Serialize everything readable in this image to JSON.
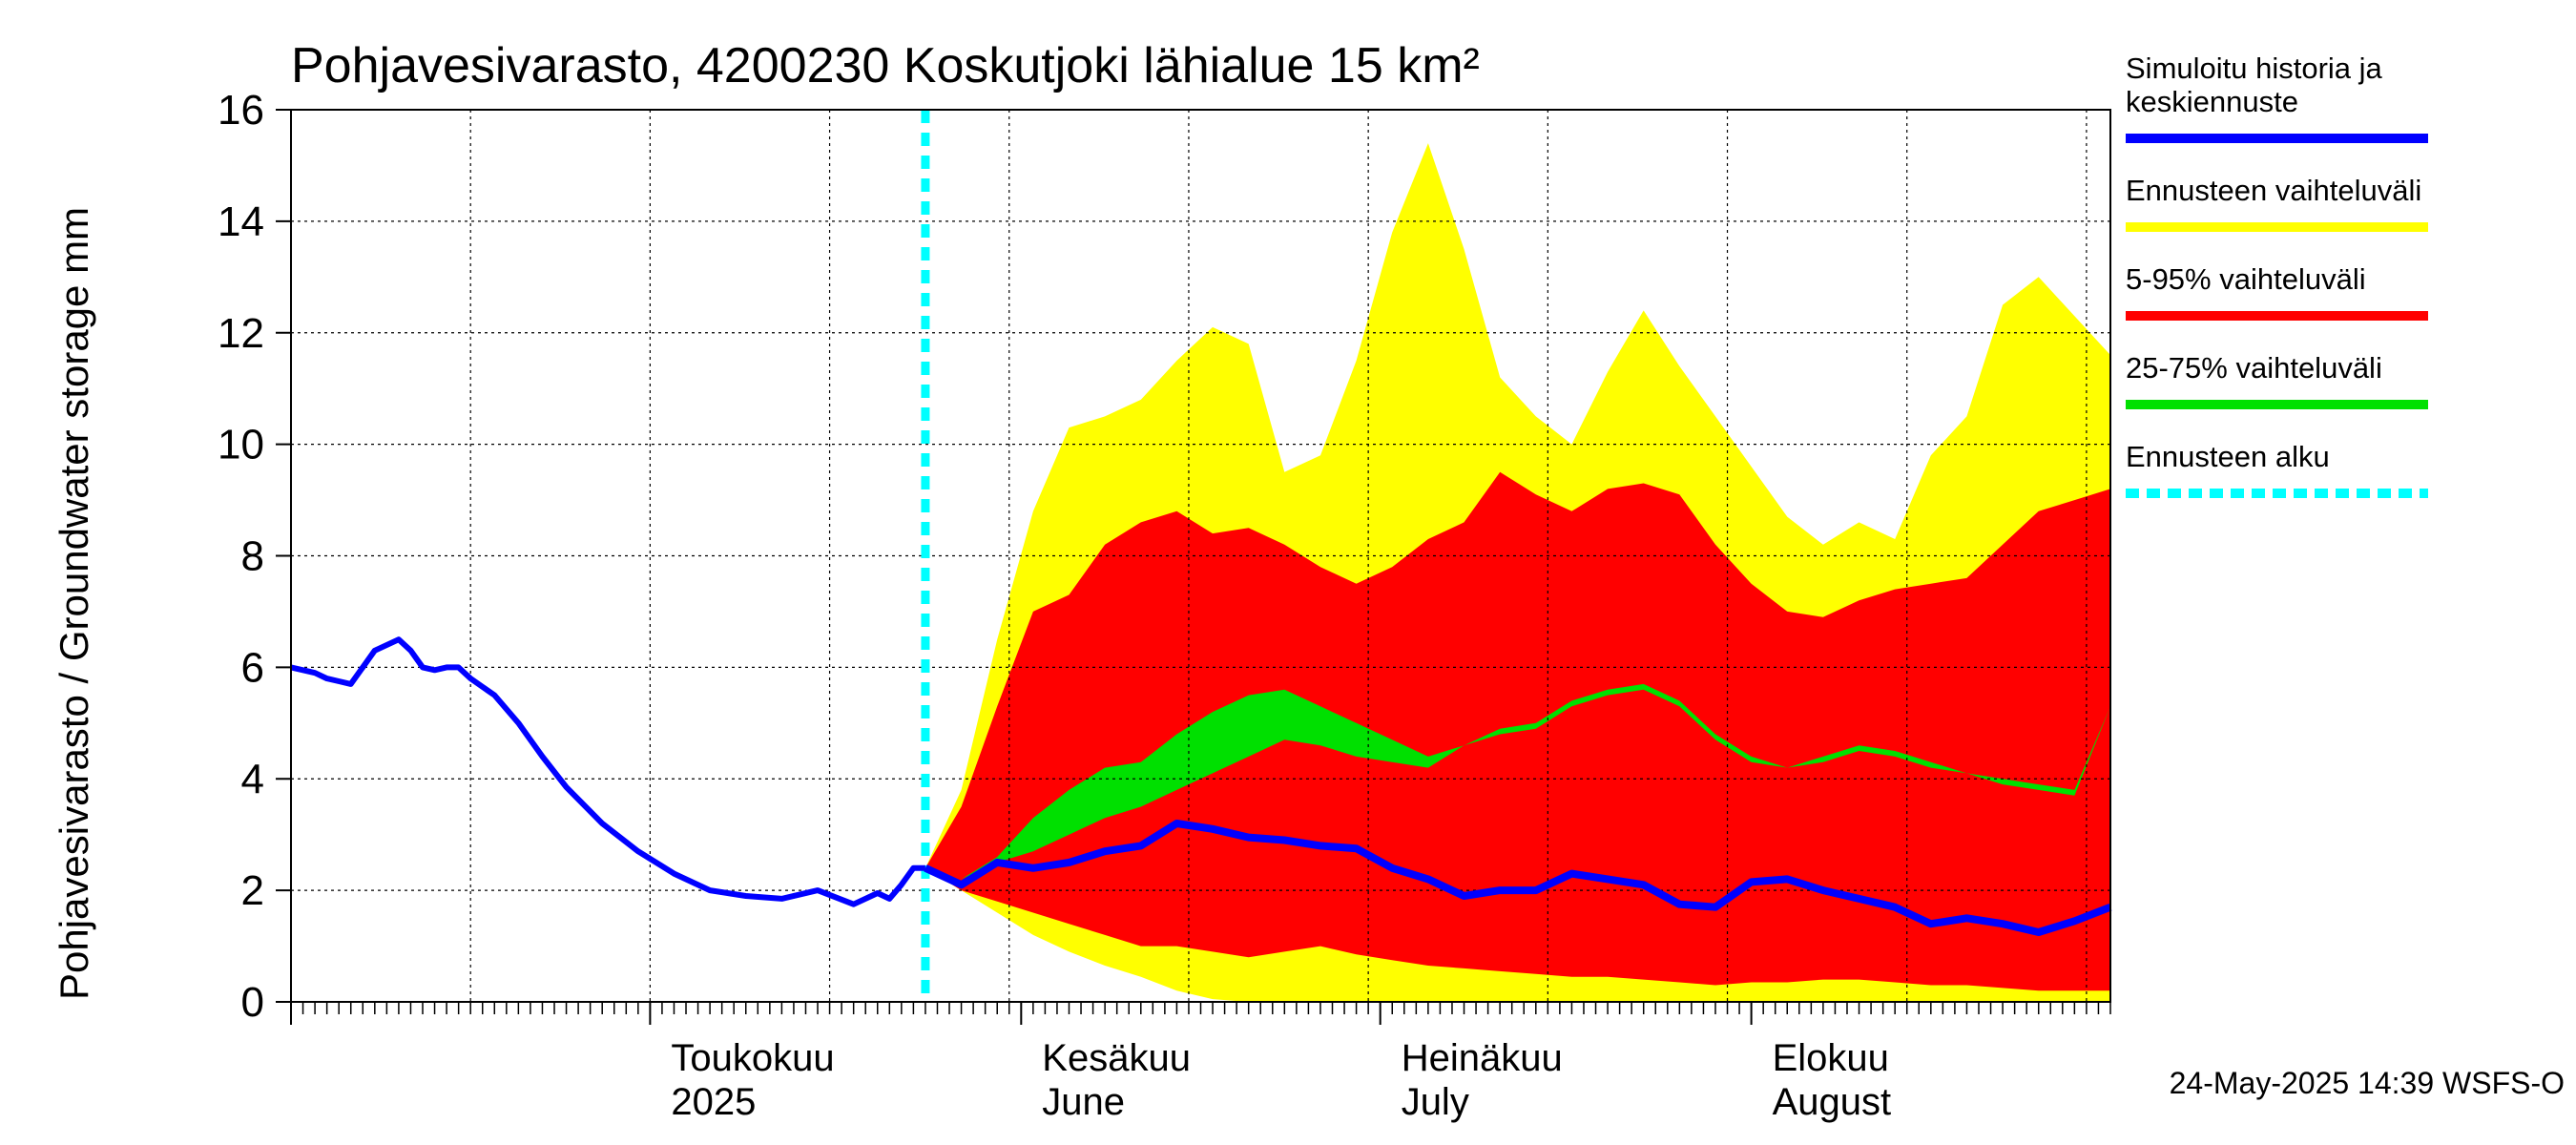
{
  "chart_data": {
    "type": "area",
    "title": "Pohjavesivarasto, 4200230 Koskutjoki lähialue 15 km²",
    "ylabel": "Pohjavesivarasto / Groundwater storage   mm",
    "ylim": [
      0,
      16
    ],
    "yticks": [
      0,
      2,
      4,
      6,
      8,
      10,
      12,
      14,
      16
    ],
    "xlim": [
      "2025-04-01",
      "2025-08-31"
    ],
    "grid": true,
    "forecast_start": "2025-05-24",
    "month_labels": [
      {
        "date": "2025-05-01",
        "line1": "Toukokuu",
        "line2": "2025"
      },
      {
        "date": "2025-06-01",
        "line1": "Kesäkuu",
        "line2": "June"
      },
      {
        "date": "2025-07-01",
        "line1": "Heinäkuu",
        "line2": "July"
      },
      {
        "date": "2025-08-01",
        "line1": "Elokuu",
        "line2": "August"
      }
    ],
    "legend": [
      {
        "label_lines": [
          "Simuloitu historia ja",
          "keskiennuste"
        ],
        "color": "#0000ff",
        "style": "solid"
      },
      {
        "label_lines": [
          "Ennusteen vaihteluväli"
        ],
        "color": "#ffff00",
        "style": "solid"
      },
      {
        "label_lines": [
          "5-95% vaihteluväli"
        ],
        "color": "#ff0000",
        "style": "solid"
      },
      {
        "label_lines": [
          "25-75% vaihteluväli"
        ],
        "color": "#00e000",
        "style": "solid"
      },
      {
        "label_lines": [
          "Ennusteen alku"
        ],
        "color": "#00ffff",
        "style": "dashed"
      }
    ],
    "history": {
      "x": [
        "2025-04-01",
        "2025-04-03",
        "2025-04-04",
        "2025-04-05",
        "2025-04-06",
        "2025-04-08",
        "2025-04-10",
        "2025-04-11",
        "2025-04-12",
        "2025-04-13",
        "2025-04-14",
        "2025-04-15",
        "2025-04-16",
        "2025-04-18",
        "2025-04-20",
        "2025-04-22",
        "2025-04-24",
        "2025-04-27",
        "2025-04-30",
        "2025-05-03",
        "2025-05-06",
        "2025-05-09",
        "2025-05-12",
        "2025-05-15",
        "2025-05-18",
        "2025-05-20",
        "2025-05-21",
        "2025-05-22",
        "2025-05-23",
        "2025-05-24"
      ],
      "y": [
        6.0,
        5.9,
        5.8,
        5.75,
        5.7,
        6.3,
        6.5,
        6.3,
        6.0,
        5.95,
        6.0,
        6.0,
        5.8,
        5.5,
        5.0,
        4.4,
        3.85,
        3.2,
        2.7,
        2.3,
        2.0,
        1.9,
        1.85,
        2.0,
        1.75,
        1.95,
        1.85,
        2.1,
        2.4,
        2.4
      ]
    },
    "forecast": {
      "x": [
        "2025-05-24",
        "2025-05-27",
        "2025-05-30",
        "2025-06-02",
        "2025-06-05",
        "2025-06-08",
        "2025-06-11",
        "2025-06-14",
        "2025-06-17",
        "2025-06-20",
        "2025-06-23",
        "2025-06-26",
        "2025-06-29",
        "2025-07-02",
        "2025-07-05",
        "2025-07-08",
        "2025-07-11",
        "2025-07-14",
        "2025-07-17",
        "2025-07-20",
        "2025-07-23",
        "2025-07-26",
        "2025-07-29",
        "2025-08-01",
        "2025-08-04",
        "2025-08-07",
        "2025-08-10",
        "2025-08-13",
        "2025-08-16",
        "2025-08-19",
        "2025-08-22",
        "2025-08-25",
        "2025-08-28",
        "2025-08-31"
      ],
      "mean": [
        2.4,
        2.1,
        2.5,
        2.4,
        2.5,
        2.7,
        2.8,
        3.2,
        3.1,
        2.95,
        2.9,
        2.8,
        2.75,
        2.4,
        2.2,
        1.9,
        2.0,
        2.0,
        2.3,
        2.2,
        2.1,
        1.75,
        1.7,
        2.15,
        2.2,
        2.0,
        1.85,
        1.7,
        1.4,
        1.5,
        1.4,
        1.25,
        1.45,
        1.7
      ],
      "min": [
        2.4,
        2.0,
        1.6,
        1.2,
        0.9,
        0.65,
        0.45,
        0.2,
        0.05,
        0.0,
        0.0,
        0.0,
        0.0,
        0.0,
        0.0,
        0.0,
        0.0,
        0.0,
        0.0,
        0.0,
        0.0,
        0.0,
        0.0,
        0.0,
        0.0,
        0.0,
        0.0,
        0.0,
        0.0,
        0.0,
        0.0,
        0.0,
        0.0,
        0.0
      ],
      "p5": [
        2.4,
        2.0,
        1.8,
        1.6,
        1.4,
        1.2,
        1.0,
        1.0,
        0.9,
        0.8,
        0.9,
        1.0,
        0.85,
        0.75,
        0.65,
        0.6,
        0.55,
        0.5,
        0.45,
        0.45,
        0.4,
        0.35,
        0.3,
        0.35,
        0.35,
        0.4,
        0.4,
        0.35,
        0.3,
        0.3,
        0.25,
        0.2,
        0.2,
        0.2
      ],
      "p25": [
        2.4,
        2.2,
        2.6,
        3.3,
        3.8,
        4.2,
        4.3,
        4.8,
        5.2,
        5.5,
        5.6,
        5.3,
        5.0,
        4.7,
        4.4,
        4.6,
        4.9,
        5.0,
        5.4,
        5.6,
        5.7,
        5.4,
        4.8,
        4.4,
        4.2,
        4.4,
        4.6,
        4.5,
        4.3,
        4.1,
        4.0,
        3.9,
        3.8,
        5.3
      ],
      "p75": [
        2.4,
        2.2,
        2.5,
        2.7,
        3.0,
        3.3,
        3.5,
        3.8,
        4.1,
        4.4,
        4.7,
        4.6,
        4.4,
        4.3,
        4.2,
        4.6,
        4.8,
        4.9,
        5.3,
        5.5,
        5.6,
        5.3,
        4.7,
        4.3,
        4.2,
        4.3,
        4.5,
        4.4,
        4.2,
        4.1,
        3.9,
        3.8,
        3.7,
        5.3
      ],
      "p95": [
        2.4,
        3.5,
        5.3,
        7.0,
        7.3,
        8.2,
        8.6,
        8.8,
        8.4,
        8.5,
        8.2,
        7.8,
        7.5,
        7.8,
        8.3,
        8.6,
        9.5,
        9.1,
        8.8,
        9.2,
        9.3,
        9.1,
        8.2,
        7.5,
        7.0,
        6.9,
        7.2,
        7.4,
        7.5,
        7.6,
        8.2,
        8.8,
        9.0,
        9.2
      ],
      "max": [
        2.4,
        3.8,
        6.5,
        8.8,
        10.3,
        10.5,
        10.8,
        11.5,
        12.1,
        11.8,
        9.5,
        9.8,
        11.5,
        13.8,
        15.4,
        13.5,
        11.2,
        10.5,
        10.0,
        11.3,
        12.4,
        11.4,
        10.5,
        9.6,
        8.7,
        8.2,
        8.6,
        8.3,
        9.8,
        10.5,
        12.5,
        13.0,
        12.3,
        11.6
      ]
    }
  },
  "footer": {
    "timestamp": "24-May-2025 14:39 WSFS-O"
  },
  "colors": {
    "history": "#0000ff",
    "max_band": "#ffff00",
    "p95_band": "#ff0000",
    "p75_band": "#00e000",
    "forecast_start": "#00ffff",
    "grid": "#000000"
  }
}
